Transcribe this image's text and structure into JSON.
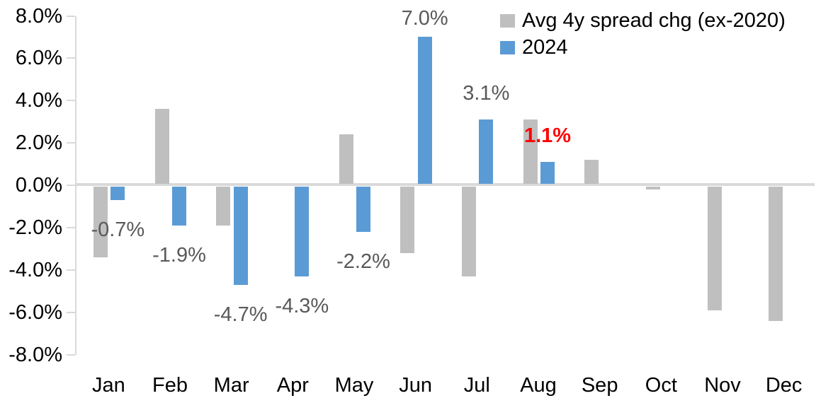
{
  "chart_data": {
    "type": "bar",
    "title": "",
    "xlabel": "",
    "ylabel": "",
    "categories": [
      "Jan",
      "Feb",
      "Mar",
      "Apr",
      "May",
      "Jun",
      "Jul",
      "Aug",
      "Sep",
      "Oct",
      "Nov",
      "Dec"
    ],
    "y_axis": {
      "min": -8,
      "max": 8,
      "step": 2,
      "format": "percent",
      "tick_labels": [
        "8.0%",
        "6.0%",
        "4.0%",
        "2.0%",
        "0.0%",
        "-2.0%",
        "-4.0%",
        "-6.0%",
        "-8.0%"
      ]
    },
    "grid": false,
    "axis_color": "#D9D9D9",
    "background": "#FFFFFF",
    "series": [
      {
        "name": "Avg 4y spread chg (ex-2020)",
        "color": "#BFBFBF",
        "values": [
          -3.4,
          3.6,
          -1.9,
          0,
          2.4,
          -3.2,
          -4.3,
          3.1,
          1.2,
          -0.2,
          -5.9,
          -6.4
        ]
      },
      {
        "name": "2024",
        "color": "#5B9BD5",
        "values": [
          -0.7,
          -1.9,
          -4.7,
          -4.3,
          -2.2,
          7.0,
          3.1,
          1.1,
          null,
          null,
          null,
          null
        ],
        "data_labels": [
          {
            "text": "-0.7%",
            "color": "#595959",
            "bold": false
          },
          {
            "text": "-1.9%",
            "color": "#595959",
            "bold": false
          },
          {
            "text": "-4.7%",
            "color": "#595959",
            "bold": false
          },
          {
            "text": "-4.3%",
            "color": "#595959",
            "bold": false
          },
          {
            "text": "-2.2%",
            "color": "#595959",
            "bold": false
          },
          {
            "text": "7.0%",
            "color": "#595959",
            "bold": false
          },
          {
            "text": "3.1%",
            "color": "#595959",
            "bold": false
          },
          {
            "text": "1.1%",
            "color": "#FF0000",
            "bold": true
          },
          null,
          null,
          null,
          null
        ]
      }
    ],
    "legend": {
      "position": "top-right",
      "items": [
        {
          "label": "Avg 4y spread chg (ex-2020)",
          "color": "#BFBFBF"
        },
        {
          "label": "2024",
          "color": "#5B9BD5"
        }
      ]
    }
  }
}
